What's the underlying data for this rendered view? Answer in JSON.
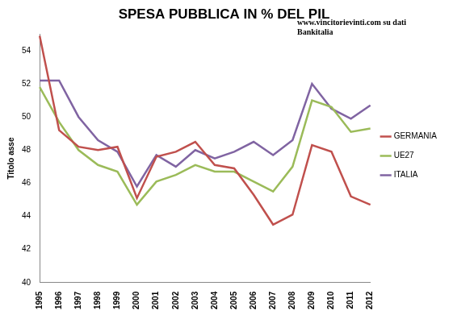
{
  "chart_data": {
    "type": "line",
    "title": "SPESA PUBBLICA IN % DEL PIL",
    "annotation": "www.vincitorievinti.com su dati\nBankitalia",
    "y_label": "Titolo asse",
    "categories": [
      "1995",
      "1996",
      "1997",
      "1998",
      "1999",
      "2000",
      "2001",
      "2002",
      "2003",
      "2004",
      "2005",
      "2006",
      "2007",
      "2008",
      "2009",
      "2010",
      "2011",
      "2012"
    ],
    "series": [
      {
        "name": "GERMANIA",
        "color": "#c0504d",
        "values": [
          54.9,
          49.2,
          48.2,
          48.0,
          48.2,
          45.1,
          47.6,
          47.9,
          48.5,
          47.1,
          46.9,
          45.3,
          43.5,
          44.1,
          48.3,
          47.9,
          45.2,
          44.7
        ]
      },
      {
        "name": "UE27",
        "color": "#9bbb59",
        "values": [
          51.8,
          49.7,
          48.0,
          47.1,
          46.7,
          44.7,
          46.1,
          46.5,
          47.1,
          46.7,
          46.7,
          46.1,
          45.5,
          47.0,
          51.0,
          50.6,
          49.1,
          49.3
        ]
      },
      {
        "name": "ITALIA",
        "color": "#8064a2",
        "values": [
          52.2,
          52.2,
          50.0,
          48.6,
          47.9,
          45.8,
          47.7,
          47.0,
          48.0,
          47.5,
          47.9,
          48.5,
          47.7,
          48.6,
          52.0,
          50.5,
          49.9,
          50.7
        ]
      }
    ],
    "ylim": [
      40,
      55
    ],
    "yticks": [
      40,
      42,
      44,
      46,
      48,
      50,
      52,
      54
    ],
    "grid": false,
    "legend": "right"
  }
}
